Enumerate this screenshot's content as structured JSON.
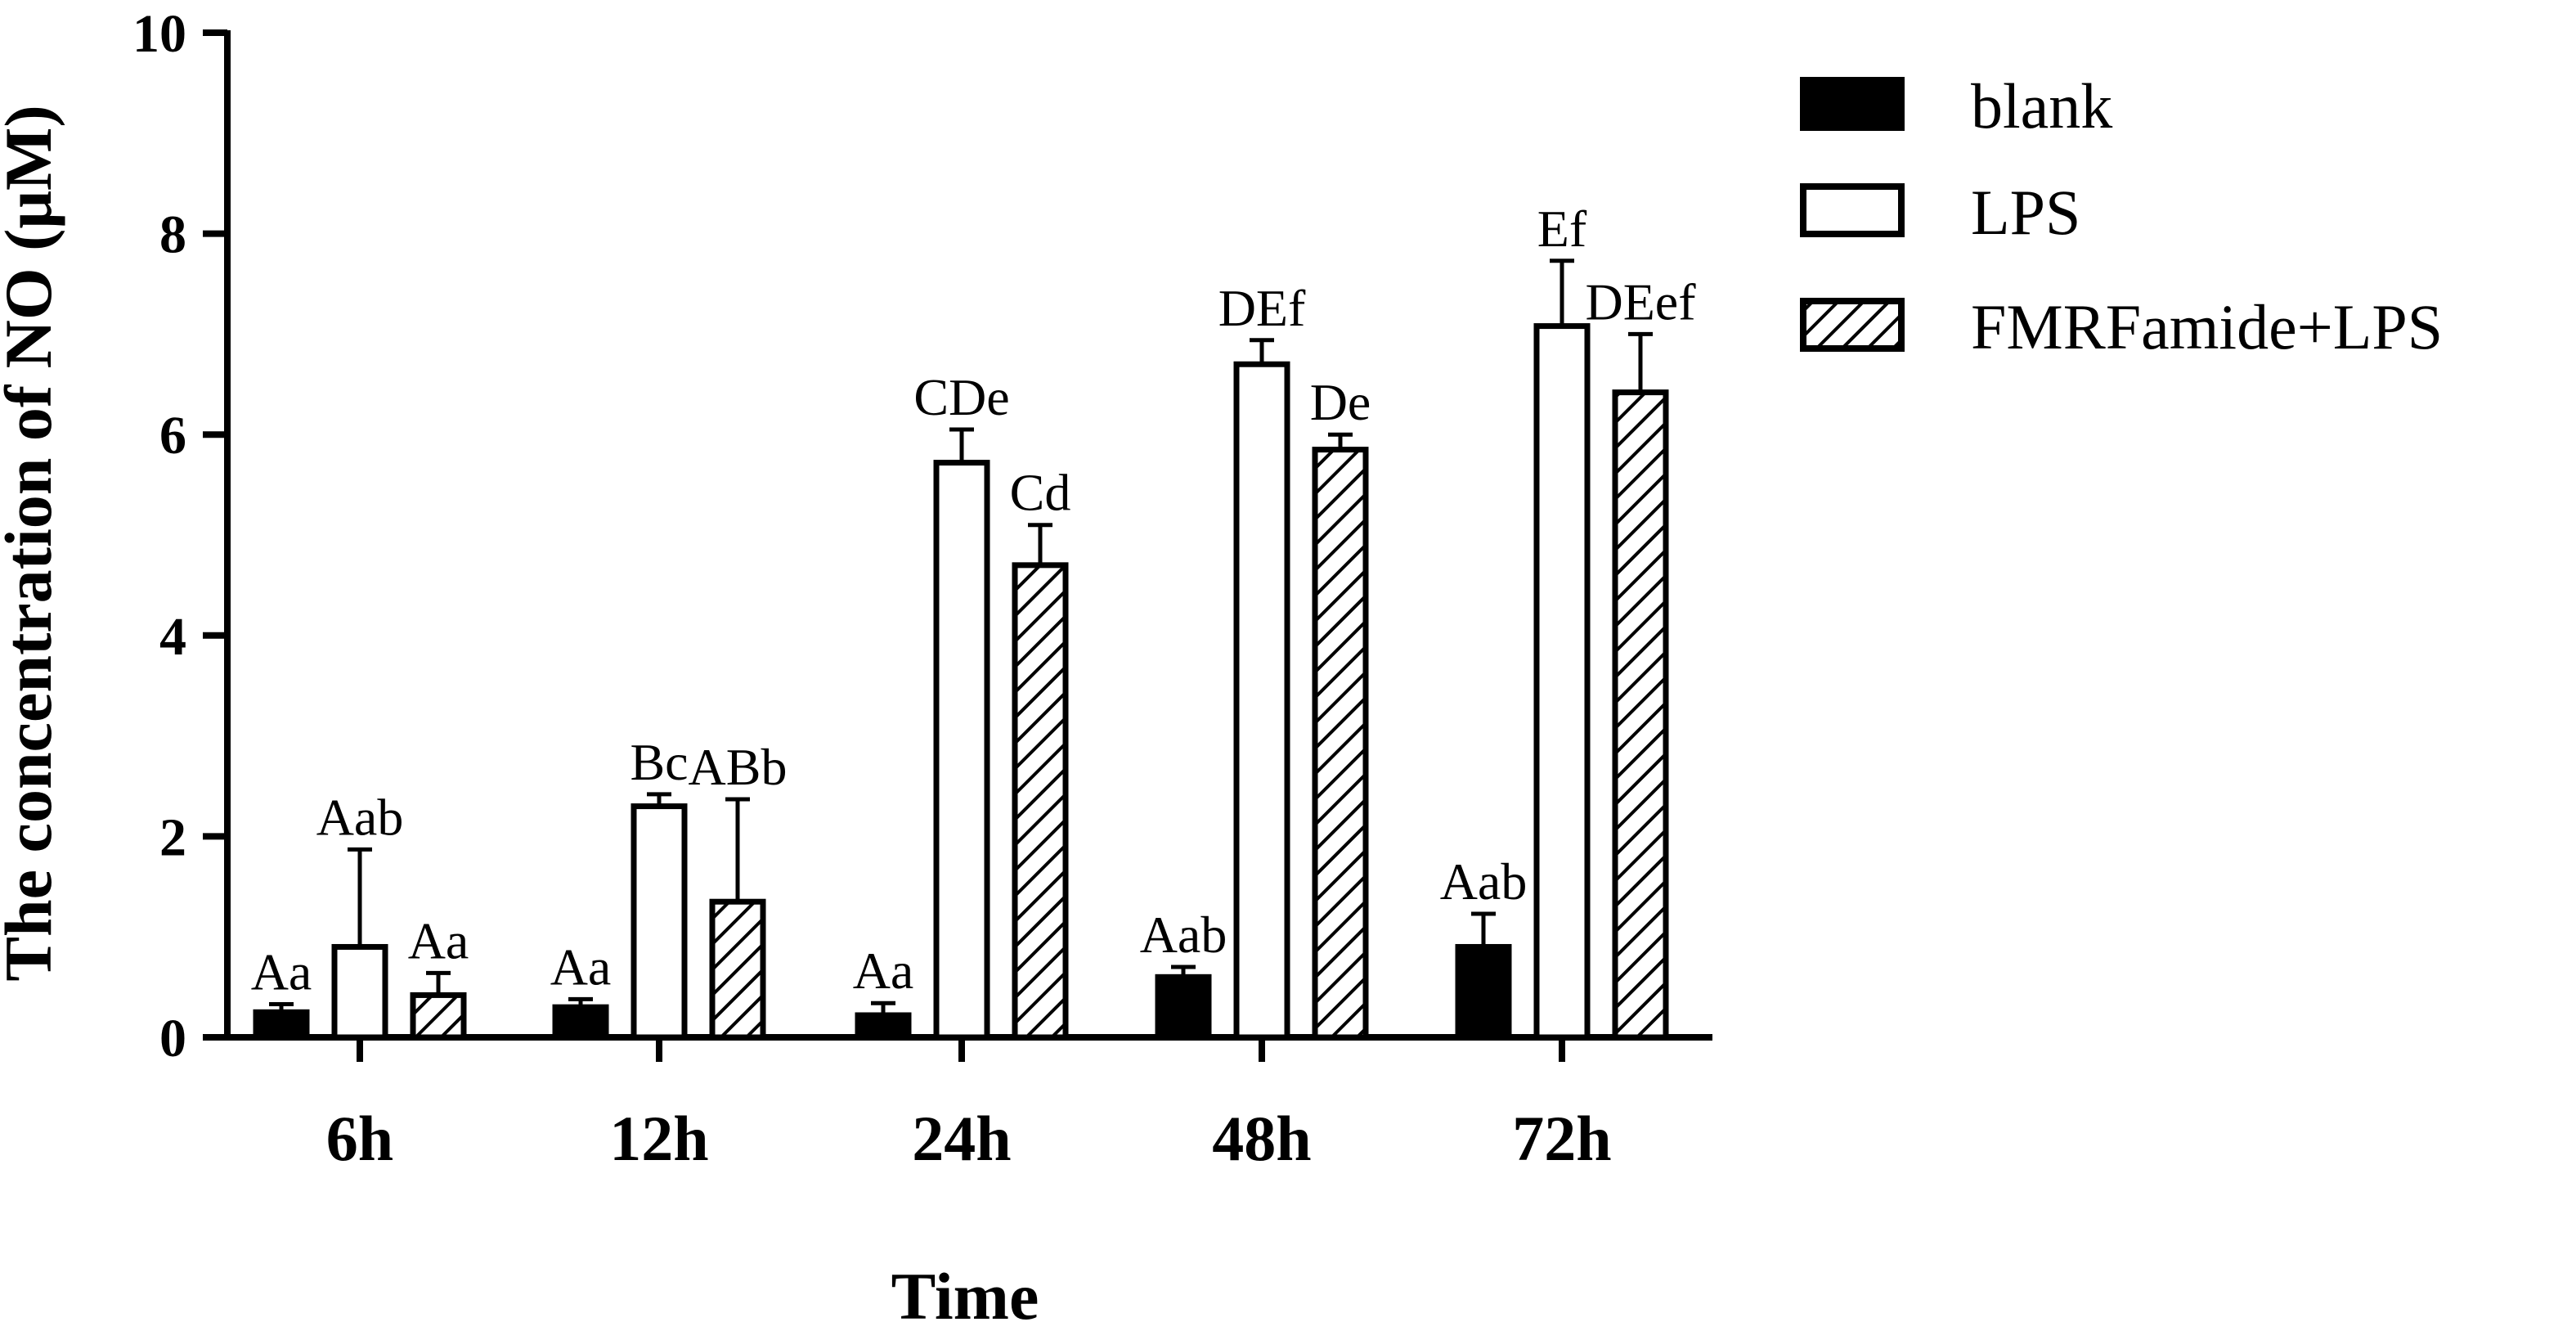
{
  "chart_data": {
    "type": "bar",
    "title": "",
    "xlabel": "Time",
    "ylabel": "The concentration of NO (μM)",
    "ylim": [
      0,
      10
    ],
    "yticks": [
      0,
      2,
      4,
      6,
      8,
      10
    ],
    "grid": false,
    "legend_position": "top-right",
    "categories": [
      "6h",
      "12h",
      "24h",
      "48h",
      "72h"
    ],
    "series": [
      {
        "name": "blank",
        "fill": "solid",
        "color": "#000000",
        "values": [
          0.25,
          0.3,
          0.22,
          0.6,
          0.9
        ],
        "errors": [
          0.08,
          0.08,
          0.12,
          0.1,
          0.33
        ],
        "labels": [
          "Aa",
          "Aa",
          "Aa",
          "Aab",
          "Aab"
        ]
      },
      {
        "name": "LPS",
        "fill": "open",
        "color": "#ffffff",
        "values": [
          0.9,
          2.3,
          5.72,
          6.7,
          7.08
        ],
        "errors": [
          0.97,
          0.12,
          0.33,
          0.24,
          0.65
        ],
        "labels": [
          "Aab",
          "Bc",
          "CDe",
          "DEf",
          "Ef"
        ]
      },
      {
        "name": "FMRFamide+LPS",
        "fill": "hatched",
        "color": "#ffffff",
        "values": [
          0.42,
          1.35,
          4.7,
          5.85,
          6.42
        ],
        "errors": [
          0.22,
          1.02,
          0.4,
          0.15,
          0.58
        ],
        "labels": [
          "Aa",
          "ABb",
          "Cd",
          "De",
          "DEef"
        ]
      }
    ]
  }
}
